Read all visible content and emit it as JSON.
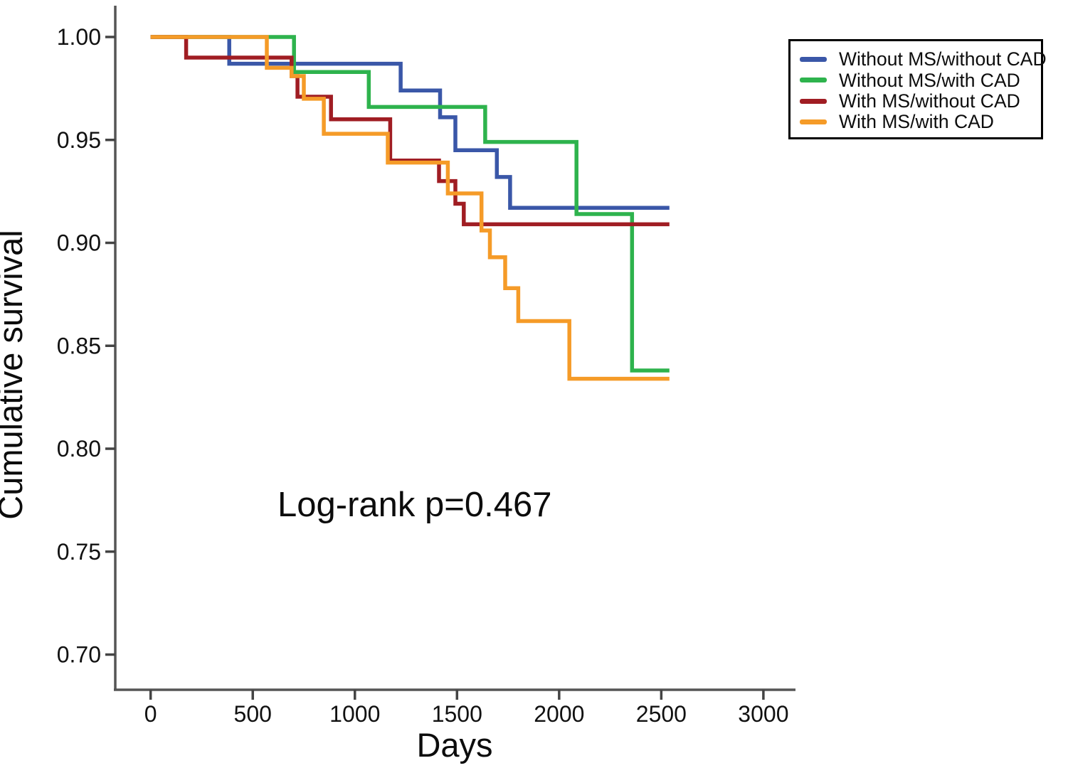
{
  "figure": {
    "kind": "kaplan-meier-survival-plot",
    "background": "#ffffff",
    "axis_color": "#555555"
  },
  "chart_data": {
    "type": "line",
    "subtype": "step-after-survival-curves",
    "title": "",
    "xlabel": "Days",
    "ylabel": "Cumulative survival",
    "annotation": {
      "text": "Log-rank p=0.467",
      "x_day": 620,
      "y_value": 0.767
    },
    "x_ticks": [
      0,
      500,
      1000,
      1500,
      2000,
      2500,
      3000
    ],
    "y_tick_labels": [
      "1.00",
      "0.95",
      "0.90",
      "0.85",
      "0.80",
      "0.75",
      "0.70"
    ],
    "y_tick_values": [
      1.0,
      0.95,
      0.9,
      0.85,
      0.8,
      0.75,
      0.7
    ],
    "xlim": [
      -175,
      3160
    ],
    "ylim": [
      0.683,
      1.015
    ],
    "grid": false,
    "legend_position": "top-right",
    "series": [
      {
        "name": "Without MS/without CAD",
        "color": "#3A57A8",
        "points": [
          [
            0,
            1.0
          ],
          [
            385,
            0.987
          ],
          [
            1224,
            0.974
          ],
          [
            1417,
            0.961
          ],
          [
            1492,
            0.945
          ],
          [
            1695,
            0.932
          ],
          [
            1760,
            0.917
          ],
          [
            2540,
            0.917
          ]
        ]
      },
      {
        "name": "Without MS/with CAD",
        "color": "#2EB34D",
        "points": [
          [
            0,
            1.0
          ],
          [
            702,
            0.983
          ],
          [
            1068,
            0.966
          ],
          [
            1638,
            0.949
          ],
          [
            2085,
            0.914
          ],
          [
            2357,
            0.838
          ],
          [
            2540,
            0.838
          ]
        ]
      },
      {
        "name": "With MS/without CAD",
        "color": "#A01D23",
        "points": [
          [
            0,
            1.0
          ],
          [
            174,
            0.99
          ],
          [
            690,
            0.981
          ],
          [
            719,
            0.971
          ],
          [
            883,
            0.96
          ],
          [
            1173,
            0.94
          ],
          [
            1412,
            0.93
          ],
          [
            1492,
            0.919
          ],
          [
            1533,
            0.909
          ],
          [
            2540,
            0.909
          ]
        ]
      },
      {
        "name": "With MS/with CAD",
        "color": "#F59B28",
        "points": [
          [
            0,
            1.0
          ],
          [
            569,
            0.985
          ],
          [
            690,
            0.981
          ],
          [
            750,
            0.97
          ],
          [
            848,
            0.953
          ],
          [
            1161,
            0.939
          ],
          [
            1455,
            0.924
          ],
          [
            1620,
            0.906
          ],
          [
            1661,
            0.893
          ],
          [
            1736,
            0.878
          ],
          [
            1800,
            0.862
          ],
          [
            2050,
            0.834
          ],
          [
            2540,
            0.834
          ]
        ]
      }
    ]
  }
}
